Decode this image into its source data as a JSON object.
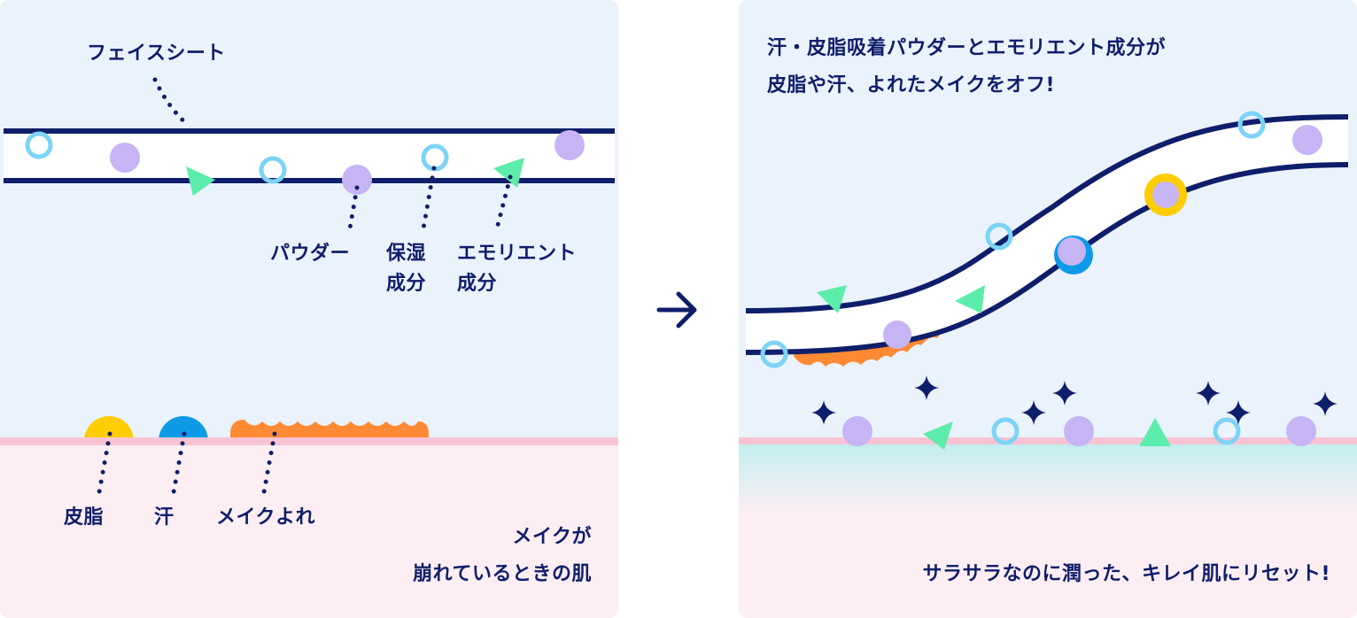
{
  "colors": {
    "navy": "#0f1e6a",
    "sky_bg": "#eaf2fc",
    "skin": "#fdeef3",
    "skin_line": "#f8c4d4",
    "lavender": "#c6b4f5",
    "ring_blue": "#7dd3f7",
    "green": "#5cedaa",
    "yellow": "#ffcd00",
    "blue": "#0f9ae8",
    "orange": "#ff8a33",
    "aqua": "#c2eef0"
  },
  "left": {
    "face_sheet_label": "フェイスシート",
    "powder_label": "パウダー",
    "moisture_line1": "保湿",
    "moisture_line2": "成分",
    "emollient_line1": "エモリエント",
    "emollient_line2": "成分",
    "sebum_label": "皮脂",
    "sweat_label": "汗",
    "makeup_smudge_label": "メイクよれ",
    "caption_line1": "メイクが",
    "caption_line2": "崩れているときの肌"
  },
  "right": {
    "heading_line1": "汗・皮脂吸着パウダーとエモリエント成分が",
    "heading_line2": "皮脂や汗、よれたメイクをオフ!",
    "caption": "サラサラなのに潤った、キレイ肌にリセット!"
  }
}
